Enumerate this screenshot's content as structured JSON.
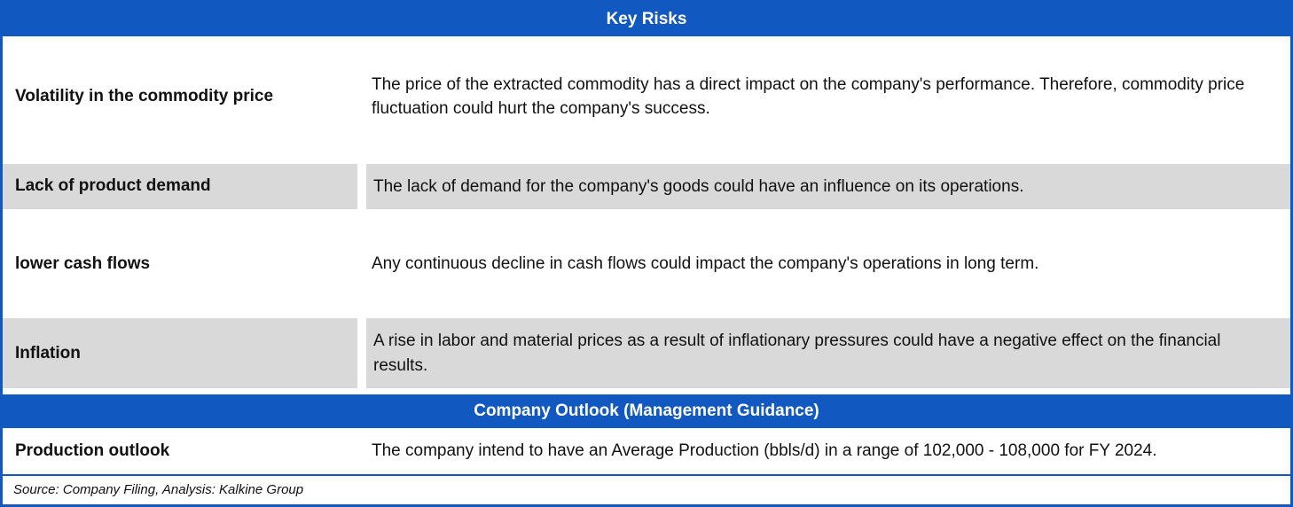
{
  "key_risks": {
    "title": "Key Risks",
    "rows": [
      {
        "label": "Volatility in the commodity price",
        "description": "The price of the extracted commodity has a direct impact on the company's performance. Therefore, commodity price fluctuation could hurt the company's success."
      },
      {
        "label": "Lack of product demand",
        "description": "The lack of demand for the company's goods could have an influence on its operations."
      },
      {
        "label": "lower cash flows",
        "description": "Any continuous decline in cash flows could impact the company's operations in long term."
      },
      {
        "label": "Inflation",
        "description": "A rise in labor and material prices as a result of inflationary pressures could have a negative effect on the financial results."
      }
    ]
  },
  "outlook": {
    "title": "Company Outlook (Management Guidance)",
    "rows": [
      {
        "label": "Production outlook",
        "description": "The company intend to have an Average Production (bbls/d) in a range of 102,000 - 108,000 for FY 2024."
      }
    ]
  },
  "footer": {
    "source": "Source: Company Filing, Analysis: Kalkine Group"
  },
  "colors": {
    "banner_blue": "#1159C1",
    "row_gray": "#D9D9D9"
  }
}
